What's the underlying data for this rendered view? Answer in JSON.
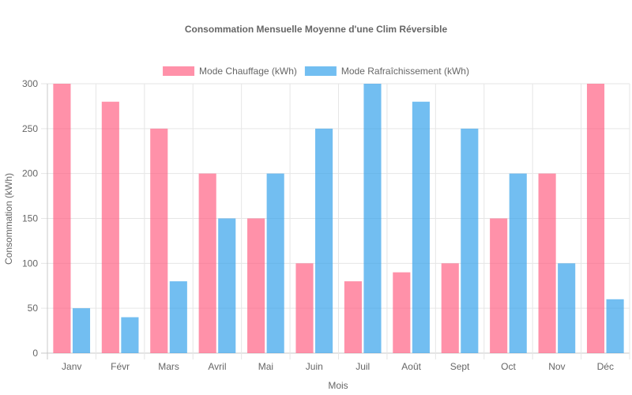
{
  "chart_data": {
    "type": "bar",
    "title": "Consommation Mensuelle Moyenne d'une Clim Réversible",
    "xlabel": "Mois",
    "ylabel": "Consommation (kWh)",
    "categories": [
      "Janv",
      "Févr",
      "Mars",
      "Avril",
      "Mai",
      "Juin",
      "Juil",
      "Août",
      "Sept",
      "Oct",
      "Nov",
      "Déc"
    ],
    "series": [
      {
        "name": "Mode Chauffage (kWh)",
        "color": "#ff6384",
        "values": [
          300,
          280,
          250,
          200,
          150,
          100,
          80,
          90,
          100,
          150,
          200,
          300
        ]
      },
      {
        "name": "Mode Rafraîchissement (kWh)",
        "color": "#36a2eb",
        "values": [
          50,
          40,
          80,
          150,
          200,
          250,
          300,
          280,
          250,
          200,
          100,
          60
        ]
      }
    ],
    "ylim": [
      0,
      300
    ],
    "yticks": [
      0,
      50,
      100,
      150,
      200,
      250,
      300
    ],
    "grid": true,
    "legend": "top-center"
  }
}
